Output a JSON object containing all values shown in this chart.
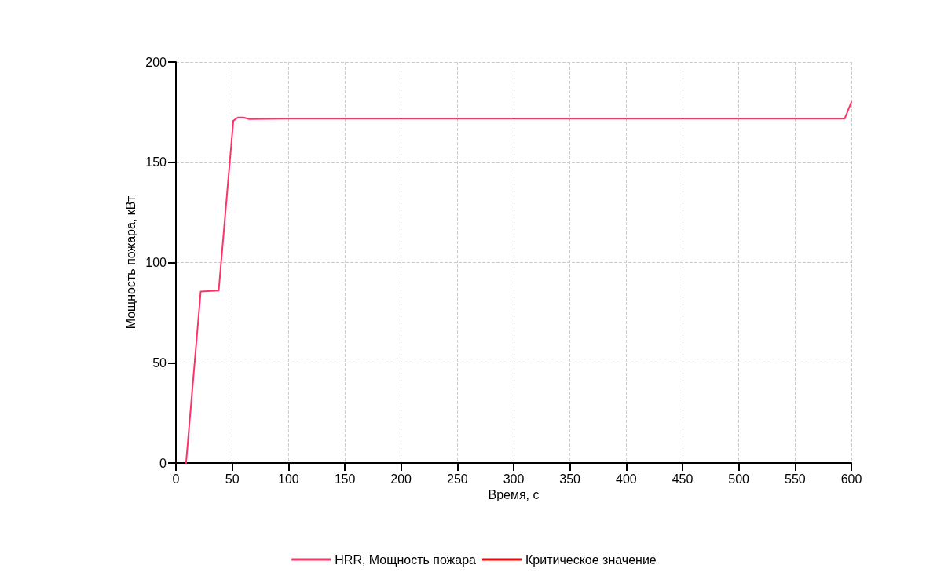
{
  "chart_data": {
    "type": "line",
    "xlabel": "Время, с",
    "ylabel": "Мощность пожара, кВт",
    "x": [
      9,
      22,
      38,
      51,
      55,
      60,
      65,
      100,
      150,
      200,
      250,
      300,
      350,
      400,
      450,
      500,
      550,
      594,
      600
    ],
    "series": [
      {
        "name": "HRR, Мощность пожара",
        "color": "#ff3366",
        "values": [
          0,
          85.5,
          86,
          170.7,
          172.3,
          172.3,
          171.5,
          171.7,
          171.7,
          171.7,
          171.7,
          171.7,
          171.7,
          171.7,
          171.7,
          171.7,
          171.7,
          171.7,
          180
        ]
      },
      {
        "name": "Критическое значение",
        "color": "#ff0000",
        "values": [
          null,
          null,
          null,
          null,
          null,
          null,
          null,
          null,
          null,
          null,
          null,
          null,
          null,
          null,
          null,
          null,
          null,
          null,
          null
        ]
      }
    ],
    "xlim": [
      0,
      600
    ],
    "xticks": [
      0,
      50,
      100,
      150,
      200,
      250,
      300,
      350,
      400,
      450,
      500,
      550,
      600
    ],
    "ylim": [
      0,
      200
    ],
    "yticks": [
      0,
      50,
      100,
      150,
      200
    ],
    "grid": true,
    "legend": "bottom",
    "marker": "none",
    "line_style": "solid"
  }
}
